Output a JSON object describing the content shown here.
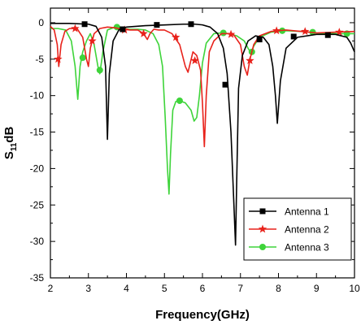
{
  "chart_data": {
    "type": "line",
    "xlabel": "Frequency(GHz)",
    "ylabel_main": "S",
    "ylabel_sub": "11",
    "ylabel_suffix": "dB",
    "xlim": [
      2,
      10
    ],
    "ylim": [
      -35,
      2
    ],
    "xticks": [
      2,
      3,
      4,
      5,
      6,
      7,
      8,
      9,
      10
    ],
    "yticks": [
      0,
      -5,
      -10,
      -15,
      -20,
      -25,
      -30,
      -35
    ],
    "grid": false,
    "legend_position": "lower-right",
    "series": [
      {
        "name": "Antenna 1",
        "color": "#000000",
        "marker": "square",
        "x": [
          2.0,
          2.5,
          3.0,
          3.2,
          3.35,
          3.45,
          3.5,
          3.55,
          3.65,
          3.8,
          4.0,
          4.5,
          5.0,
          5.5,
          5.8,
          6.0,
          6.2,
          6.4,
          6.55,
          6.65,
          6.75,
          6.82,
          6.87,
          6.9,
          6.95,
          7.05,
          7.2,
          7.4,
          7.6,
          7.75,
          7.85,
          7.92,
          7.97,
          8.05,
          8.2,
          8.5,
          9.0,
          9.5,
          9.8,
          9.9,
          10.0
        ],
        "y": [
          -0.1,
          -0.1,
          -0.2,
          -0.5,
          -2.0,
          -6.0,
          -16.0,
          -7.0,
          -2.5,
          -1.0,
          -0.6,
          -0.4,
          -0.3,
          -0.2,
          -0.2,
          -0.3,
          -0.6,
          -1.5,
          -3.5,
          -7.0,
          -15.0,
          -24.0,
          -30.5,
          -22.0,
          -9.0,
          -4.5,
          -2.5,
          -1.8,
          -2.0,
          -3.0,
          -6.0,
          -10.0,
          -13.8,
          -8.0,
          -3.5,
          -2.0,
          -1.6,
          -1.6,
          -2.0,
          -2.8,
          -4.0
        ],
        "markers_x": [
          2.9,
          3.9,
          4.8,
          5.7,
          6.6,
          7.5,
          8.4,
          9.3
        ],
        "markers_y": [
          -0.2,
          -0.9,
          -0.3,
          -0.2,
          -8.5,
          -2.3,
          -1.9,
          -1.7
        ]
      },
      {
        "name": "Antenna 2",
        "color": "#e8221b",
        "marker": "star",
        "x": [
          2.0,
          2.1,
          2.18,
          2.22,
          2.28,
          2.38,
          2.5,
          2.7,
          2.85,
          2.95,
          3.0,
          3.05,
          3.15,
          3.3,
          3.5,
          3.7,
          3.9,
          4.1,
          4.3,
          4.45,
          4.55,
          4.62,
          4.72,
          4.85,
          5.0,
          5.2,
          5.4,
          5.55,
          5.62,
          5.68,
          5.75,
          5.85,
          5.95,
          6.0,
          6.05,
          6.1,
          6.18,
          6.3,
          6.5,
          6.8,
          7.0,
          7.1,
          7.18,
          7.25,
          7.35,
          7.5,
          7.8,
          8.2,
          8.6,
          9.0,
          9.5,
          10.0
        ],
        "y": [
          -0.5,
          -1.0,
          -3.0,
          -6.0,
          -3.0,
          -1.2,
          -0.8,
          -0.8,
          -2.0,
          -5.0,
          -6.0,
          -3.5,
          -1.5,
          -0.8,
          -0.6,
          -0.7,
          -0.9,
          -1.0,
          -1.0,
          -1.5,
          -2.3,
          -1.5,
          -0.9,
          -1.0,
          -1.0,
          -1.5,
          -3.0,
          -6.0,
          -6.8,
          -5.5,
          -4.0,
          -4.5,
          -6.5,
          -11.0,
          -17.0,
          -10.0,
          -4.0,
          -2.5,
          -1.5,
          -1.5,
          -3.0,
          -6.0,
          -7.2,
          -5.0,
          -3.0,
          -1.8,
          -1.2,
          -1.0,
          -1.2,
          -1.4,
          -1.3,
          -1.2
        ],
        "markers_x": [
          2.2,
          2.65,
          3.1,
          3.95,
          4.45,
          5.3,
          5.8,
          6.75,
          7.25,
          7.95,
          8.7,
          9.6
        ],
        "markers_y": [
          -5.0,
          -0.8,
          -2.5,
          -1.0,
          -1.5,
          -2.0,
          -5.2,
          -1.6,
          -5.2,
          -1.1,
          -1.2,
          -1.3
        ]
      },
      {
        "name": "Antenna 3",
        "color": "#3ed43a",
        "marker": "circle",
        "x": [
          2.0,
          2.2,
          2.4,
          2.55,
          2.65,
          2.72,
          2.78,
          2.85,
          2.95,
          3.05,
          3.15,
          3.25,
          3.3,
          3.38,
          3.5,
          3.7,
          3.9,
          4.1,
          4.3,
          4.5,
          4.7,
          4.85,
          4.95,
          5.02,
          5.08,
          5.12,
          5.16,
          5.22,
          5.3,
          5.4,
          5.55,
          5.7,
          5.78,
          5.85,
          5.92,
          6.0,
          6.1,
          6.3,
          6.5,
          6.7,
          6.9,
          7.1,
          7.2,
          7.28,
          7.35,
          7.5,
          7.8,
          8.2,
          8.6,
          9.0,
          9.5,
          10.0
        ],
        "y": [
          -0.8,
          -0.8,
          -1.0,
          -2.5,
          -6.0,
          -10.5,
          -6.0,
          -4.0,
          -2.5,
          -1.5,
          -3.0,
          -6.0,
          -7.0,
          -4.0,
          -1.0,
          -0.6,
          -0.8,
          -0.9,
          -0.9,
          -1.0,
          -1.5,
          -3.0,
          -6.0,
          -13.0,
          -20.0,
          -23.5,
          -18.0,
          -12.0,
          -10.8,
          -10.7,
          -11.0,
          -12.0,
          -13.5,
          -13.0,
          -10.0,
          -5.5,
          -2.8,
          -1.5,
          -1.4,
          -1.5,
          -1.8,
          -2.5,
          -3.5,
          -4.2,
          -3.2,
          -2.0,
          -1.3,
          -1.1,
          -1.2,
          -1.4,
          -1.5,
          -1.5
        ],
        "markers_x": [
          2.85,
          3.3,
          3.75,
          5.4,
          6.55,
          7.3,
          8.1,
          8.9,
          9.8
        ],
        "markers_y": [
          -4.8,
          -6.5,
          -0.6,
          -10.7,
          -1.4,
          -4.0,
          -1.1,
          -1.3,
          -1.5
        ]
      }
    ]
  }
}
